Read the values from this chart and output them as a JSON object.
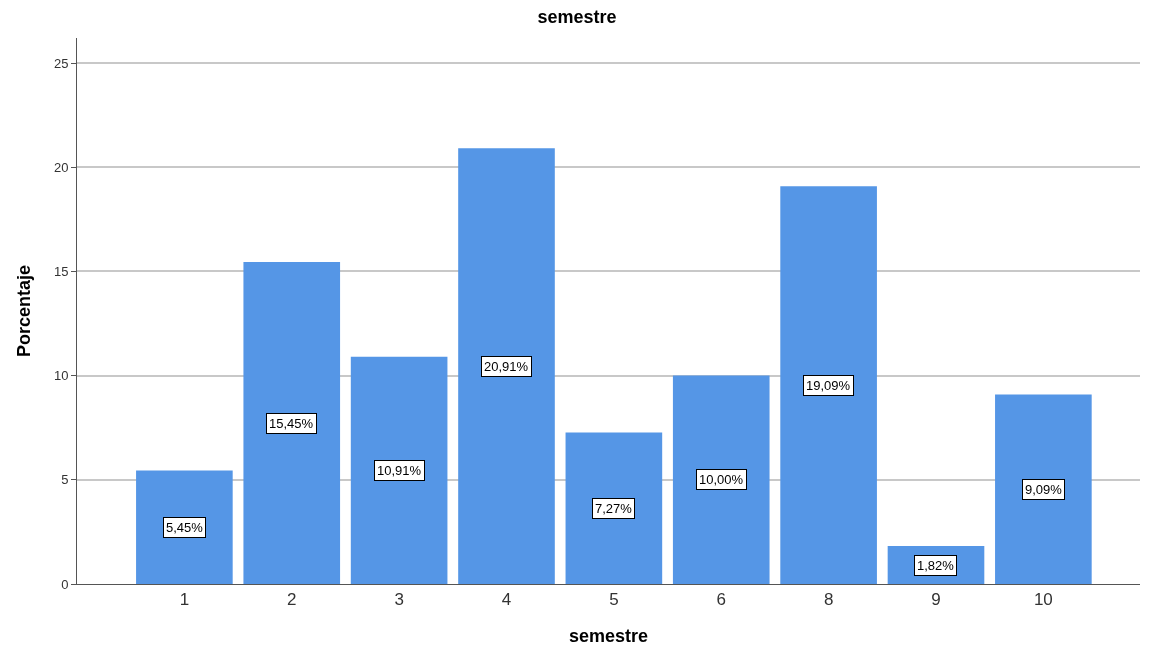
{
  "chart_data": {
    "type": "bar",
    "title": "semestre",
    "xlabel": "semestre",
    "ylabel": "Porcentaje",
    "categories": [
      "1",
      "2",
      "3",
      "4",
      "5",
      "6",
      "8",
      "9",
      "10"
    ],
    "values": [
      5.45,
      15.45,
      10.91,
      20.91,
      7.27,
      10.0,
      19.09,
      1.82,
      9.09
    ],
    "value_labels": [
      "5,45%",
      "15,45%",
      "10,91%",
      "20,91%",
      "7,27%",
      "10,00%",
      "19,09%",
      "1,82%",
      "9,09%"
    ],
    "color": "#5596e6",
    "ylim": [
      0,
      26.2
    ],
    "yticks": [
      0,
      5,
      10,
      15,
      20,
      25
    ],
    "grid": "y"
  }
}
